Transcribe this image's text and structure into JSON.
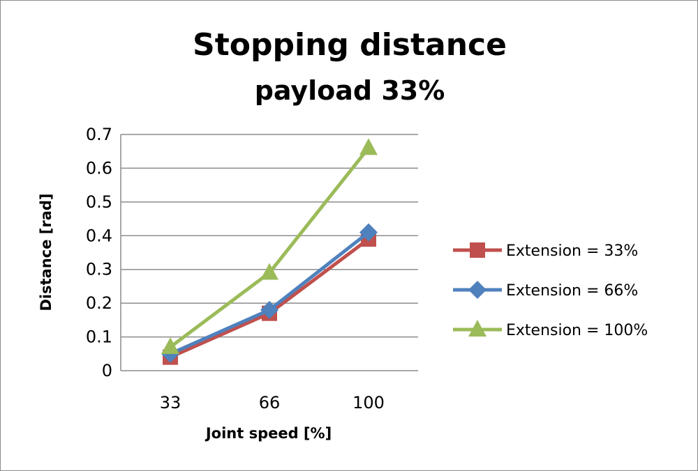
{
  "chart_data": {
    "type": "line",
    "title": "Stopping distance",
    "subtitle": "payload 33%",
    "xlabel": "Joint speed [%]",
    "ylabel": "Distance [rad]",
    "categories": [
      "33",
      "66",
      "100"
    ],
    "ylim": [
      0,
      0.7
    ],
    "yticks": [
      "0",
      "0.1",
      "0.2",
      "0.3",
      "0.4",
      "0.5",
      "0.6",
      "0.7"
    ],
    "grid": true,
    "legend": "right",
    "series": [
      {
        "name": "Extension = 33%",
        "values": [
          0.04,
          0.17,
          0.39
        ],
        "color": "#c0504d",
        "marker": "square"
      },
      {
        "name": "Extension = 66%",
        "values": [
          0.05,
          0.18,
          0.41
        ],
        "color": "#4f81bd",
        "marker": "diamond"
      },
      {
        "name": "Extension = 100%",
        "values": [
          0.07,
          0.29,
          0.66
        ],
        "color": "#9bbb59",
        "marker": "triangle"
      }
    ]
  }
}
